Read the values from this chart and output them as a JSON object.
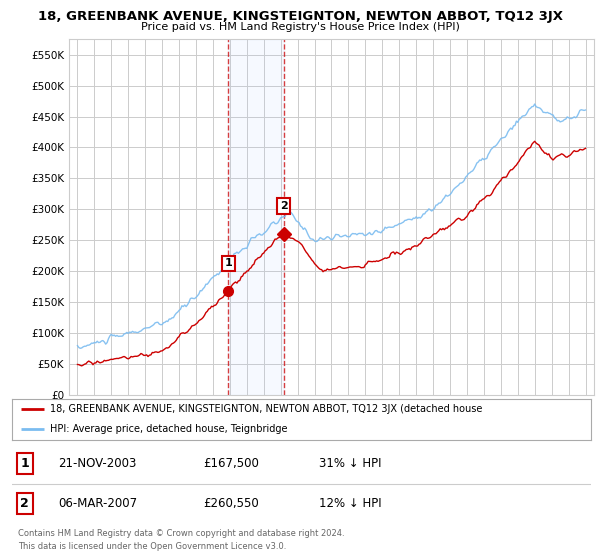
{
  "title": "18, GREENBANK AVENUE, KINGSTEIGNTON, NEWTON ABBOT, TQ12 3JX",
  "subtitle": "Price paid vs. HM Land Registry's House Price Index (HPI)",
  "legend_line1": "18, GREENBANK AVENUE, KINGSTEIGNTON, NEWTON ABBOT, TQ12 3JX (detached house",
  "legend_line2": "HPI: Average price, detached house, Teignbridge",
  "transaction1_date": "21-NOV-2003",
  "transaction1_price": "£167,500",
  "transaction1_hpi": "31% ↓ HPI",
  "transaction2_date": "06-MAR-2007",
  "transaction2_price": "£260,550",
  "transaction2_hpi": "12% ↓ HPI",
  "copyright": "Contains HM Land Registry data © Crown copyright and database right 2024.",
  "license": "This data is licensed under the Open Government Licence v3.0.",
  "hpi_color": "#7bbcf0",
  "price_color": "#cc0000",
  "marker1_x": 2003.9,
  "marker2_x": 2007.17,
  "marker1_y": 167500,
  "marker2_y": 260550,
  "vline1_x": 2003.9,
  "vline2_x": 2007.17,
  "ylim_min": 0,
  "ylim_max": 575000,
  "xlim_min": 1994.5,
  "xlim_max": 2025.5,
  "yticks": [
    0,
    50000,
    100000,
    150000,
    200000,
    250000,
    300000,
    350000,
    400000,
    450000,
    500000,
    550000
  ],
  "background_color": "#ffffff",
  "grid_color": "#cccccc"
}
